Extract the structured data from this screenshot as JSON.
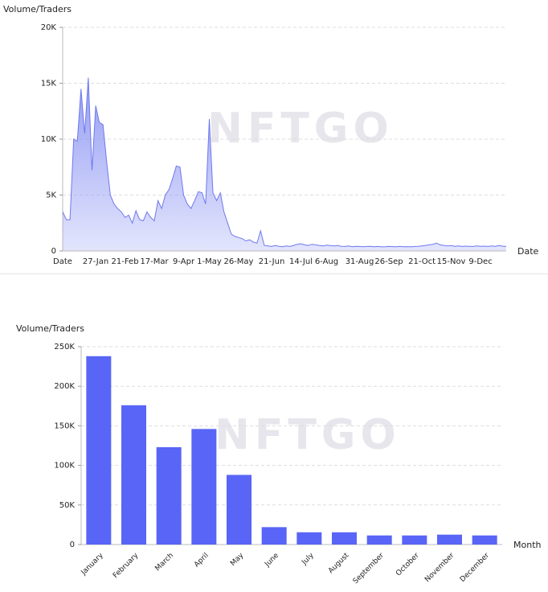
{
  "chart_data": [
    {
      "type": "area",
      "y_axis_label": "Volume/Traders",
      "x_axis_label": "Date",
      "watermark": "NFTGO",
      "color": "#8e97f3",
      "categories": [
        "Date",
        null,
        null,
        null,
        null,
        null,
        null,
        null,
        null,
        "27-Jan",
        null,
        null,
        null,
        null,
        null,
        null,
        null,
        "21-Feb",
        null,
        null,
        null,
        null,
        null,
        null,
        null,
        "17-Mar",
        null,
        null,
        null,
        null,
        null,
        null,
        null,
        "9-Apr",
        null,
        null,
        null,
        null,
        null,
        null,
        "1-May",
        null,
        null,
        null,
        null,
        null,
        null,
        null,
        "26-May",
        null,
        null,
        null,
        null,
        null,
        null,
        null,
        null,
        "21-Jun",
        null,
        null,
        null,
        null,
        null,
        null,
        null,
        "14-Jul",
        null,
        null,
        null,
        null,
        null,
        null,
        "6-Aug",
        null,
        null,
        null,
        null,
        null,
        null,
        null,
        null,
        "31-Aug",
        null,
        null,
        null,
        null,
        null,
        null,
        null,
        "26-Sep",
        null,
        null,
        null,
        null,
        null,
        null,
        null,
        null,
        "21-Oct",
        null,
        null,
        null,
        null,
        null,
        null,
        null,
        "15-Nov",
        null,
        null,
        null,
        null,
        null,
        null,
        null,
        "9-Dec",
        null,
        null,
        null,
        null,
        null,
        null,
        null
      ],
      "values": [
        3500,
        2800,
        2800,
        10000,
        9800,
        14500,
        10500,
        15500,
        7200,
        13000,
        11500,
        11300,
        8000,
        5000,
        4200,
        3800,
        3500,
        3000,
        3200,
        2500,
        3600,
        2800,
        2700,
        3500,
        3000,
        2700,
        4500,
        3800,
        5000,
        5500,
        6500,
        7600,
        7500,
        5000,
        4200,
        3800,
        4500,
        5300,
        5200,
        4200,
        11800,
        5200,
        4500,
        5200,
        3500,
        2500,
        1500,
        1300,
        1200,
        1100,
        900,
        1000,
        800,
        700,
        1800,
        500,
        450,
        400,
        500,
        420,
        380,
        450,
        400,
        500,
        600,
        650,
        550,
        500,
        600,
        550,
        500,
        450,
        520,
        480,
        450,
        500,
        420,
        400,
        450,
        380,
        420,
        400,
        380,
        400,
        420,
        380,
        400,
        370,
        380,
        400,
        390,
        380,
        400,
        380,
        390,
        370,
        400,
        420,
        450,
        500,
        550,
        600,
        700,
        550,
        500,
        450,
        480,
        420,
        450,
        400,
        430,
        420,
        400,
        450,
        420,
        430,
        400,
        450,
        420,
        480,
        430,
        400
      ],
      "ylim": [
        0,
        20000
      ],
      "yticks": [
        0,
        {
          "value": 5000,
          "label": "5K"
        },
        {
          "value": 10000,
          "label": "10K"
        },
        {
          "value": 15000,
          "label": "15K"
        },
        {
          "value": 20000,
          "label": "20K"
        }
      ],
      "grid": true
    },
    {
      "type": "bar",
      "y_axis_label": "Volume/Traders",
      "x_axis_label": "Month",
      "watermark": "NFTGO",
      "color": "#5865f7",
      "categories": [
        "January",
        "February",
        "March",
        "April",
        "May",
        "June",
        "July",
        "August",
        "September",
        "October",
        "November",
        "December"
      ],
      "values": [
        238000,
        176000,
        123000,
        146000,
        88000,
        22000,
        15500,
        15500,
        11500,
        11500,
        12500,
        11500
      ],
      "ylim": [
        0,
        250000
      ],
      "yticks": [
        0,
        {
          "value": 50000,
          "label": "50K"
        },
        {
          "value": 100000,
          "label": "100K"
        },
        {
          "value": 150000,
          "label": "150K"
        },
        {
          "value": 200000,
          "label": "200K"
        },
        {
          "value": 250000,
          "label": "250K"
        }
      ],
      "grid": true
    }
  ]
}
